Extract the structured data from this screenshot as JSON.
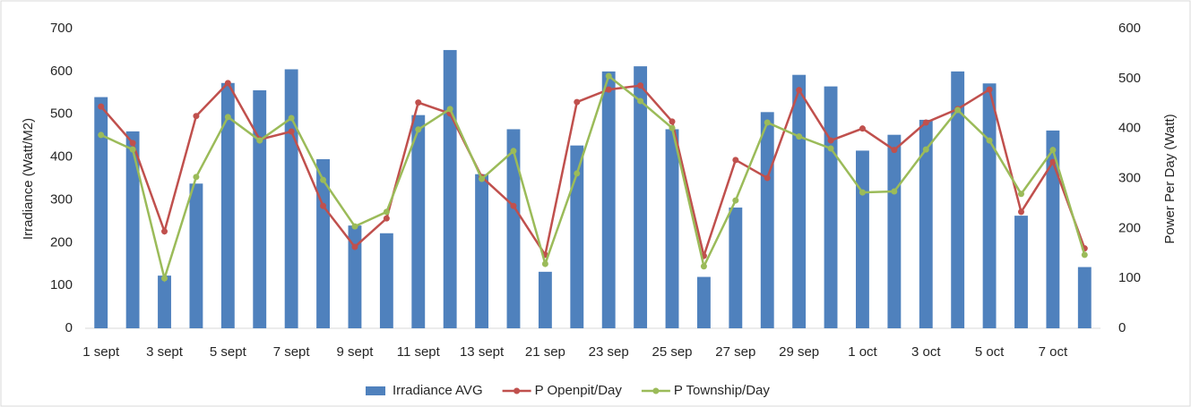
{
  "chart_data": {
    "type": "combo",
    "y_label": "Irradiance (Watt/M2)",
    "y2_label": "Power Per Day (Watt)",
    "categories": [
      "1 sept",
      null,
      "3 sept",
      null,
      "5 sept",
      null,
      "7 sept",
      null,
      "9 sept",
      null,
      "11 sept",
      null,
      "13 sept",
      null,
      "21 sep",
      null,
      "23 sep",
      null,
      "25 sep",
      null,
      "27 sep",
      null,
      "29 sep",
      null,
      "1 oct",
      null,
      "3 oct",
      null,
      "5 oct",
      null,
      "7 oct",
      null
    ],
    "series": [
      {
        "name": "Irradiance AVG",
        "type": "bar",
        "color": "#4f81bd",
        "values": [
          540,
          460,
          123,
          338,
          573,
          556,
          605,
          395,
          240,
          222,
          498,
          650,
          360,
          465,
          132,
          427,
          600,
          612,
          465,
          120,
          282,
          505,
          592,
          565,
          415,
          452,
          487,
          600,
          572,
          263,
          462,
          143
        ]
      },
      {
        "name": "P Openpit/Day",
        "type": "line",
        "axis": "y2",
        "color": "#c0504d",
        "values": [
          444,
          371,
          194,
          425,
          491,
          378,
          394,
          245,
          163,
          220,
          452,
          430,
          303,
          245,
          147,
          453,
          478,
          486,
          414,
          145,
          337,
          301,
          477,
          376,
          400,
          357,
          412,
          439,
          478,
          233,
          333,
          160
        ]
      },
      {
        "name": "P Township/Day",
        "type": "line",
        "axis": "y2",
        "color": "#9bbb59",
        "values": [
          387,
          358,
          100,
          303,
          423,
          376,
          421,
          297,
          204,
          233,
          398,
          439,
          299,
          355,
          129,
          310,
          505,
          455,
          401,
          124,
          256,
          412,
          384,
          360,
          272,
          274,
          358,
          437,
          376,
          269,
          357,
          147
        ]
      }
    ],
    "ylim": [
      0,
      700
    ],
    "yticks": [
      0,
      100,
      200,
      300,
      400,
      500,
      600,
      700
    ],
    "y2lim": [
      0,
      600
    ],
    "y2ticks": [
      0,
      100,
      200,
      300,
      400,
      500,
      600
    ],
    "legend": "bottom"
  }
}
